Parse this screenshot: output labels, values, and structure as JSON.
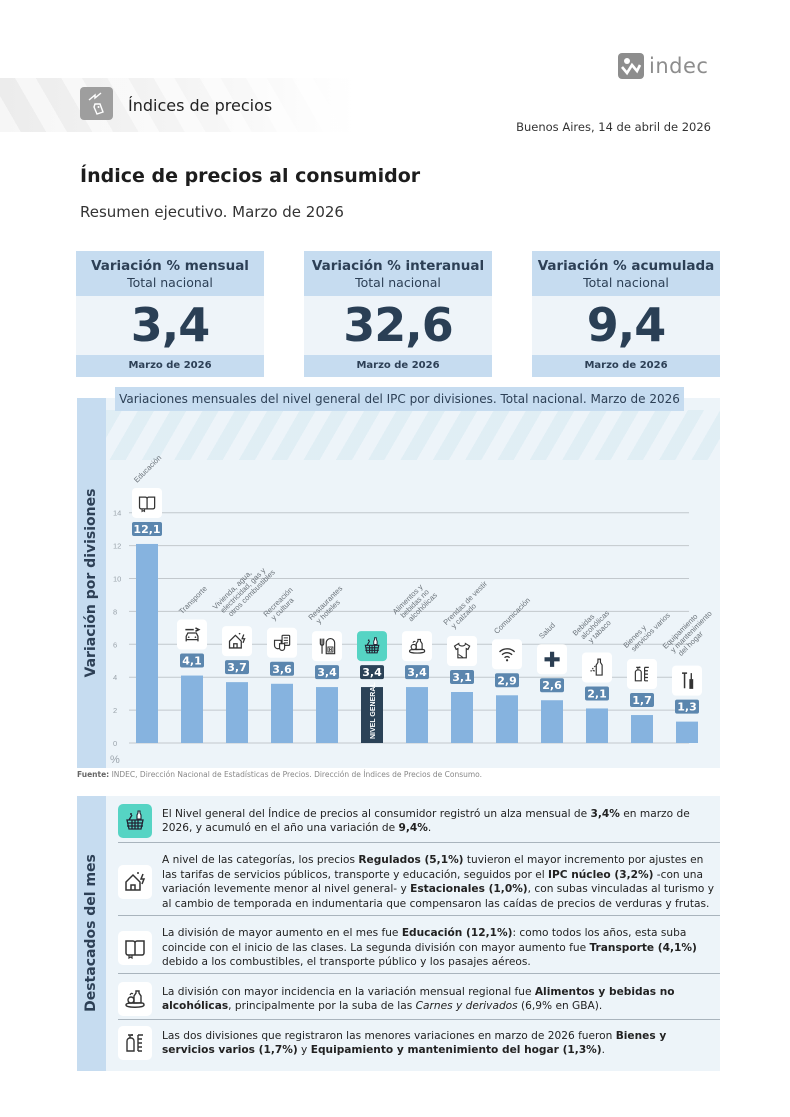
{
  "header": {
    "section_title": "Índices de precios",
    "logo_text": "indec",
    "date": "Buenos Aires, 14 de abril de 2026",
    "title": "Índice de precios al consumidor",
    "subtitle": "Resumen ejecutivo. Marzo de 2026"
  },
  "kpis": [
    {
      "label": "Variación % mensual",
      "sublabel": "Total nacional",
      "value": "3,4",
      "period": "Marzo de 2026"
    },
    {
      "label": "Variación % interanual",
      "sublabel": "Total nacional",
      "value": "32,6",
      "period": "Marzo de 2026"
    },
    {
      "label": "Variación % acumulada",
      "sublabel": "Total nacional",
      "value": "9,4",
      "period": "Marzo de 2026"
    }
  ],
  "chart_side_label": "Variación por divisiones",
  "chart_data": {
    "type": "bar",
    "title": "Variaciones mensuales del nivel general del IPC por divisiones. Total nacional. Marzo de 2026",
    "xlabel": "",
    "ylabel": "%",
    "ylim": [
      0,
      14
    ],
    "yticks": [
      0,
      2,
      4,
      6,
      8,
      10,
      12,
      14
    ],
    "grid": true,
    "categories": [
      "Educación",
      "Transporte",
      "Vivienda, agua, electricidad, gas y otros combustibles",
      "Recreación y cultura",
      "Restaurantes y hoteles",
      "Nivel general",
      "Alimentos y bebidas no alcohólicas",
      "Prendas de vestir y calzado",
      "Comunicación",
      "Salud",
      "Bebidas alcohólicas y tabaco",
      "Bienes y servicios varios",
      "Equipamiento y mantenimiento del hogar"
    ],
    "category_label_lines": [
      [
        "Educación"
      ],
      [
        "Transporte"
      ],
      [
        "Vivienda, agua,",
        "electricidad, gas y",
        "otros combustibles"
      ],
      [
        "Recreación",
        "y cultura"
      ],
      [
        "Restaurantes",
        "y hoteles"
      ],
      [],
      [
        "Alimentos y",
        "bebidas no",
        "alcohólicas"
      ],
      [
        "Prendas de vestir",
        "y calzado"
      ],
      [
        "Comunicación"
      ],
      [
        "Salud"
      ],
      [
        "Bebidas",
        "alcohólicas",
        "y tabaco"
      ],
      [
        "Bienes y",
        "servicios varios"
      ],
      [
        "Equipamiento",
        "y mantenimiento",
        "del hogar"
      ]
    ],
    "values": [
      12.1,
      4.1,
      3.7,
      3.6,
      3.4,
      3.4,
      3.4,
      3.1,
      2.9,
      2.6,
      2.1,
      1.7,
      1.3
    ],
    "value_labels": [
      "12,1",
      "4,1",
      "3,7",
      "3,6",
      "3,4",
      "3,4",
      "3,4",
      "3,1",
      "2,9",
      "2,6",
      "2,1",
      "1,7",
      "1,3"
    ],
    "icons": [
      "book-icon",
      "car-wrench-icon",
      "house-bolt-icon",
      "theater-masks-icon",
      "fork-hotel-icon",
      "basket-icon",
      "food-bottle-icon",
      "shirt-icon",
      "wifi-icon",
      "plus-icon",
      "bottle-icon",
      "spray-comb-icon",
      "tools-icon"
    ],
    "highlight_index": 5,
    "highlight_bar_label": "NIVEL GENERAL",
    "colors": {
      "bar": "#86b3df",
      "highlight_bar": "#2b4257",
      "label_bg": "#5b86ae",
      "highlight_label_bg": "#2b4257",
      "highlight_icon_bg": "#56d4c4"
    }
  },
  "source": {
    "label": "Fuente:",
    "text": " INDEC, Dirección Nacional de Estadísticas de Precios. Dirección de Índices de Precios de Consumo."
  },
  "highlights_side_label": "Destacados del mes",
  "highlights": [
    {
      "icon": "basket-icon",
      "html": "El Nivel general del Índice de precios al consumidor registró un alza mensual de <b>3,4%</b> en marzo de 2026, y acumuló en el año una variación de <b>9,4%</b>."
    },
    {
      "icon": "house-bolt-icon",
      "html": "A nivel de las categorías, los precios <b>Regulados (5,1%)</b> tuvieron el mayor incremento por ajustes en las tarifas de servicios públicos, transporte y educación, seguidos por el <b>IPC núcleo (3,2%)</b> -con una variación levemente menor al nivel general- y <b>Estacionales (1,0%)</b>, con subas vinculadas al turismo y al cambio de temporada en indumentaria que compensaron las caídas de precios de verduras y frutas."
    },
    {
      "icon": "book-icon",
      "html": "La división de mayor aumento en el mes fue <b>Educación (12,1%)</b>: como todos los años, esta suba coincide con el inicio de las clases. La segunda división con mayor aumento fue <b>Transporte (4,1%)</b> debido a los combustibles, el transporte público y los pasajes aéreos."
    },
    {
      "icon": "food-bottle-icon",
      "html": "La división con mayor incidencia en la variación mensual regional fue <b>Alimentos y bebidas no alcohólicas</b>, principalmente por la suba de las <i>Carnes y derivados</i> (6,9% en GBA)."
    },
    {
      "icon": "spray-comb-icon",
      "html": "Las dos divisiones que registraron las menores variaciones en marzo de 2026 fueron <b>Bienes y servicios varios (1,7%)</b> y <b>Equipamiento y mantenimiento del hogar (1,3%)</b>."
    }
  ]
}
